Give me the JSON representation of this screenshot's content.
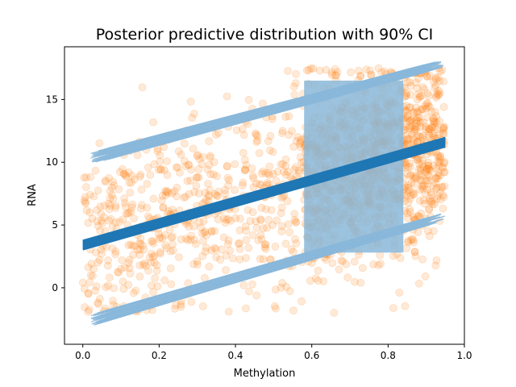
{
  "chart_data": {
    "type": "scatter",
    "title": "Posterior predictive distribution with 90% CI",
    "xlabel": "Methylation",
    "ylabel": "RNA",
    "xlim": [
      -0.048,
      1.0
    ],
    "ylim": [
      -4.5,
      19.2
    ],
    "x_ticks": [
      0.0,
      0.2,
      0.4,
      0.6,
      0.8,
      1.0
    ],
    "x_tick_labels": [
      "0.0",
      "0.2",
      "0.4",
      "0.6",
      "0.8",
      "1.0"
    ],
    "y_ticks": [
      0,
      5,
      10,
      15
    ],
    "y_tick_labels": [
      "0",
      "5",
      "10",
      "15"
    ],
    "grid": false,
    "legend": "none",
    "colors": {
      "scatter": "#ff7f0e",
      "mean_line": "#1f77b4",
      "ci_band": "#8ab8db"
    },
    "scatter_x_range": [
      0.0,
      0.95
    ],
    "scatter_y_range": [
      -2.0,
      17.5
    ],
    "posterior_mean": {
      "name": "mean",
      "x": [
        0.0,
        0.95
      ],
      "y": [
        3.4,
        11.6
      ]
    },
    "ci_90": {
      "upper": {
        "x": [
          0.02,
          0.95
        ],
        "y": [
          10.3,
          17.9
        ]
      },
      "lower": {
        "x": [
          0.02,
          0.95
        ],
        "y": [
          -2.6,
          5.7
        ]
      },
      "dense_region": {
        "x": [
          0.58,
          0.84
        ],
        "y_upper": 16.5,
        "y_lower": 2.8
      }
    }
  }
}
